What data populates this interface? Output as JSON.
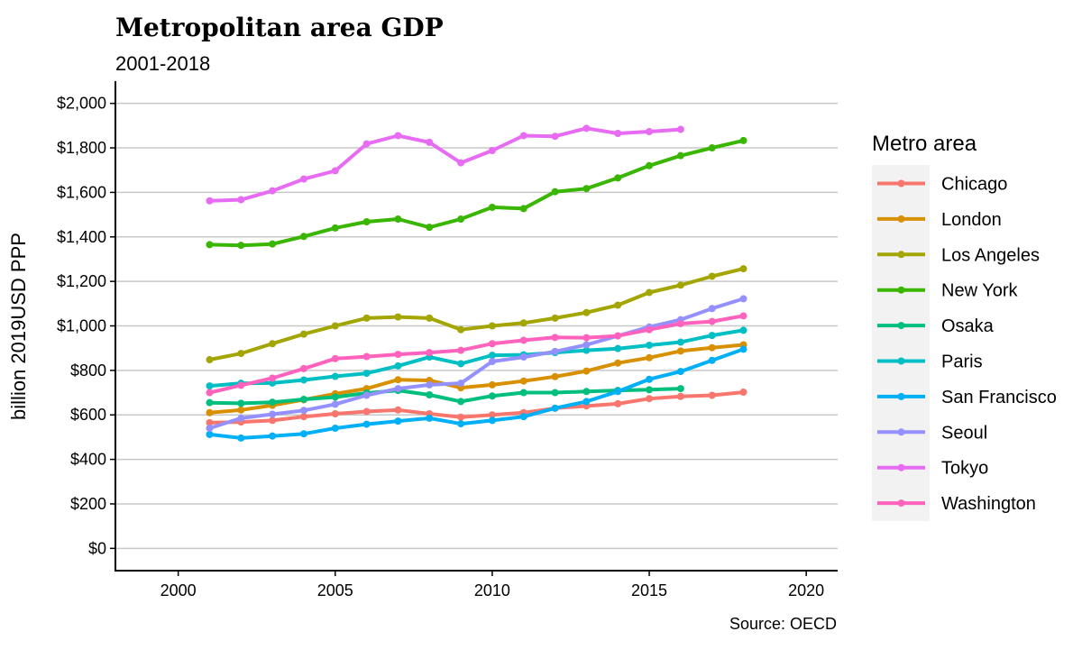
{
  "chart_data": {
    "type": "line",
    "title": "Metropolitan area GDP",
    "subtitle": "2001-2018",
    "caption": "Source: OECD",
    "ylabel": "billion 2019USD PPP",
    "xlabel": "",
    "xlim": [
      1998,
      2021
    ],
    "ylim": [
      -100,
      2100
    ],
    "x_ticks": [
      2000,
      2005,
      2010,
      2015,
      2020
    ],
    "y_ticks": [
      0,
      200,
      400,
      600,
      800,
      1000,
      1200,
      1400,
      1600,
      1800,
      2000
    ],
    "y_tick_labels": [
      "$0",
      "$200",
      "$400",
      "$600",
      "$800",
      "$1,000",
      "$1,200",
      "$1,400",
      "$1,600",
      "$1,800",
      "$2,000"
    ],
    "grid": "horizontal",
    "legend_title": "Metro area",
    "legend_position": "right",
    "series": [
      {
        "name": "Chicago",
        "color": "#F8766D",
        "x": [
          2001,
          2002,
          2003,
          2004,
          2005,
          2006,
          2007,
          2008,
          2009,
          2010,
          2011,
          2012,
          2013,
          2014,
          2015,
          2016,
          2017,
          2018
        ],
        "values": [
          565,
          568,
          575,
          592,
          605,
          615,
          622,
          605,
          590,
          600,
          610,
          630,
          640,
          650,
          673,
          683,
          688,
          702
        ]
      },
      {
        "name": "London",
        "color": "#D89000",
        "x": [
          2001,
          2002,
          2003,
          2004,
          2005,
          2006,
          2007,
          2008,
          2009,
          2010,
          2011,
          2012,
          2013,
          2014,
          2015,
          2016,
          2017,
          2018
        ],
        "values": [
          610,
          622,
          643,
          668,
          695,
          718,
          758,
          755,
          722,
          735,
          752,
          772,
          797,
          833,
          857,
          887,
          902,
          915
        ]
      },
      {
        "name": "Los Angeles",
        "color": "#A3A500",
        "x": [
          2001,
          2002,
          2003,
          2004,
          2005,
          2006,
          2007,
          2008,
          2009,
          2010,
          2011,
          2012,
          2013,
          2014,
          2015,
          2016,
          2017,
          2018
        ],
        "values": [
          848,
          876,
          920,
          963,
          1000,
          1035,
          1040,
          1035,
          983,
          1000,
          1013,
          1035,
          1060,
          1093,
          1150,
          1183,
          1223,
          1257
        ]
      },
      {
        "name": "New York",
        "color": "#39B600",
        "x": [
          2001,
          2002,
          2003,
          2004,
          2005,
          2006,
          2007,
          2008,
          2009,
          2010,
          2011,
          2012,
          2013,
          2014,
          2015,
          2016,
          2017,
          2018
        ],
        "values": [
          1365,
          1362,
          1368,
          1402,
          1440,
          1468,
          1480,
          1443,
          1480,
          1533,
          1527,
          1603,
          1617,
          1665,
          1720,
          1765,
          1800,
          1833
        ]
      },
      {
        "name": "Osaka",
        "color": "#00BF7D",
        "x": [
          2001,
          2002,
          2003,
          2004,
          2005,
          2006,
          2007,
          2008,
          2009,
          2010,
          2011,
          2012,
          2013,
          2014,
          2015,
          2016
        ],
        "values": [
          655,
          652,
          657,
          670,
          680,
          698,
          710,
          690,
          660,
          685,
          700,
          700,
          705,
          710,
          713,
          718
        ]
      },
      {
        "name": "Paris",
        "color": "#00BFC4",
        "x": [
          2001,
          2002,
          2003,
          2004,
          2005,
          2006,
          2007,
          2008,
          2009,
          2010,
          2011,
          2012,
          2013,
          2014,
          2015,
          2016,
          2017,
          2018
        ],
        "values": [
          730,
          742,
          743,
          757,
          773,
          787,
          820,
          860,
          830,
          868,
          870,
          880,
          890,
          898,
          913,
          927,
          957,
          980
        ]
      },
      {
        "name": "San Francisco",
        "color": "#00B0F6",
        "x": [
          2001,
          2002,
          2003,
          2004,
          2005,
          2006,
          2007,
          2008,
          2009,
          2010,
          2011,
          2012,
          2013,
          2014,
          2015,
          2016,
          2017,
          2018
        ],
        "values": [
          512,
          496,
          505,
          515,
          540,
          558,
          572,
          585,
          560,
          575,
          592,
          630,
          660,
          705,
          760,
          795,
          845,
          895
        ]
      },
      {
        "name": "Seoul",
        "color": "#9590FF",
        "x": [
          2001,
          2002,
          2003,
          2004,
          2005,
          2006,
          2007,
          2008,
          2009,
          2010,
          2011,
          2012,
          2013,
          2014,
          2015,
          2016,
          2017,
          2018
        ],
        "values": [
          540,
          585,
          603,
          620,
          648,
          688,
          718,
          735,
          742,
          840,
          860,
          885,
          915,
          955,
          995,
          1028,
          1078,
          1122
        ]
      },
      {
        "name": "Tokyo",
        "color": "#E76BF3",
        "x": [
          2001,
          2002,
          2003,
          2004,
          2005,
          2006,
          2007,
          2008,
          2009,
          2010,
          2011,
          2012,
          2013,
          2014,
          2015,
          2016
        ],
        "values": [
          1562,
          1567,
          1607,
          1660,
          1697,
          1818,
          1855,
          1825,
          1733,
          1788,
          1855,
          1852,
          1888,
          1865,
          1873,
          1883
        ]
      },
      {
        "name": "Washington",
        "color": "#FF62BC",
        "x": [
          2001,
          2002,
          2003,
          2004,
          2005,
          2006,
          2007,
          2008,
          2009,
          2010,
          2011,
          2012,
          2013,
          2014,
          2015,
          2016,
          2017,
          2018
        ],
        "values": [
          700,
          733,
          765,
          808,
          853,
          862,
          872,
          880,
          890,
          920,
          935,
          948,
          947,
          955,
          983,
          1010,
          1020,
          1045
        ]
      }
    ]
  }
}
